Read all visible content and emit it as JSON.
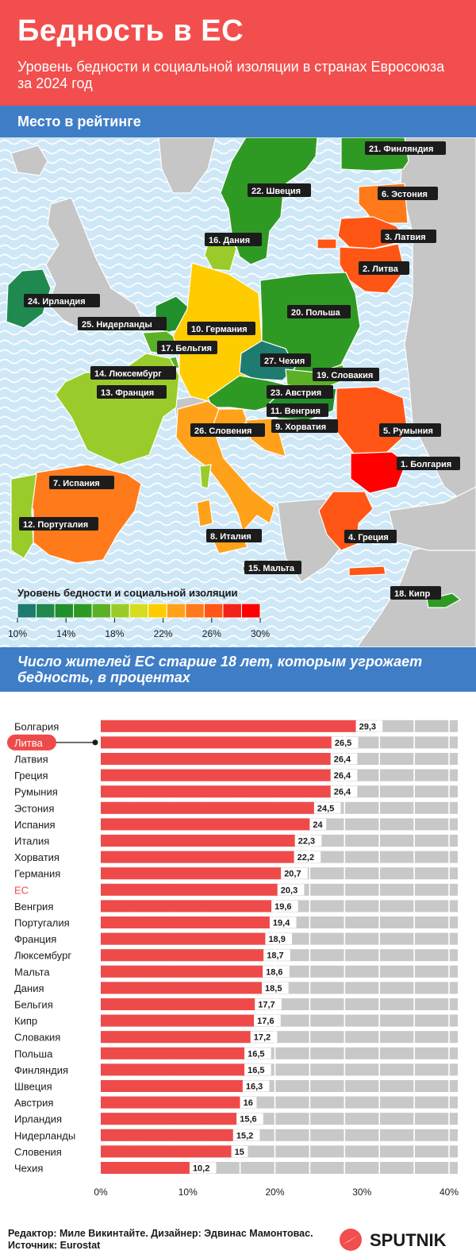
{
  "header": {
    "title": "Бедность в ЕС",
    "subtitle": "Уровень бедности и социальной изоляции в странах Евросоюза за 2024 год"
  },
  "map": {
    "section_title": "Место в рейтинге",
    "legend_title": "Уровень бедности и социальной изоляции",
    "legend_ticks": [
      "10%",
      "14%",
      "18%",
      "22%",
      "26%",
      "30%"
    ],
    "legend_colors": [
      "#1e7b6f",
      "#20894f",
      "#228f2d",
      "#2f9a23",
      "#5cb025",
      "#99cc2a",
      "#d6dd1e",
      "#ffcc00",
      "#ffa21a",
      "#ff7a1a",
      "#ff5515",
      "#f2221a",
      "#ff0000"
    ],
    "neighbor_color": "#c6c6c6",
    "sea_color": "#cfe8f7",
    "labels": {
      "bulgaria": "1. Болгария",
      "lithuania": "2. Литва",
      "latvia": "3. Латвия",
      "greece": "4. Греция",
      "romania": "5. Румыния",
      "estonia": "6. Эстония",
      "spain": "7. Испания",
      "italy": "8. Италия",
      "croatia": "9. Хорватия",
      "germany": "10. Германия",
      "hungary": "11. Венгрия",
      "portugal": "12. Португалия",
      "france": "13. Франция",
      "luxembourg": "14. Люксембург",
      "malta": "15. Мальта",
      "denmark": "16. Дания",
      "belgium": "17. Бельгия",
      "cyprus": "18. Кипр",
      "slovakia": "19. Словакия",
      "poland": "20. Польша",
      "finland": "21. Финляндия",
      "sweden": "22. Швеция",
      "austria": "23. Австрия",
      "ireland": "24. Ирландия",
      "netherlands": "25. Нидерланды",
      "slovenia": "26. Словения",
      "czechia": "27. Чехия"
    }
  },
  "bar_section": {
    "title": "Число жителей ЕС старше 18 лет, которым угрожает бедность, в процентах"
  },
  "chart_data": {
    "type": "bar",
    "orientation": "horizontal",
    "categories": [
      "Болгария",
      "Литва",
      "Латвия",
      "Греция",
      "Румыния",
      "Эстония",
      "Испания",
      "Италия",
      "Хорватия",
      "Германия",
      "ЕС",
      "Венгрия",
      "Португалия",
      "Франция",
      "Люксембург",
      "Мальта",
      "Дания",
      "Бельгия",
      "Кипр",
      "Словакия",
      "Польша",
      "Финляндия",
      "Швеция",
      "Австрия",
      "Ирландия",
      "Нидерланды",
      "Словения",
      "Чехия"
    ],
    "values": [
      29.3,
      26.5,
      26.4,
      26.4,
      26.4,
      24.5,
      24,
      22.3,
      22.2,
      20.7,
      20.3,
      19.6,
      19.4,
      18.9,
      18.7,
      18.6,
      18.5,
      17.7,
      17.6,
      17.2,
      16.5,
      16.5,
      16.3,
      16,
      15.6,
      15.2,
      15,
      10.2
    ],
    "value_labels": [
      "29,3",
      "26,5",
      "26,4",
      "26,4",
      "26,4",
      "24,5",
      "24",
      "22,3",
      "22,2",
      "20,7",
      "20,3",
      "19,6",
      "19,4",
      "18,9",
      "18,7",
      "18,6",
      "18,5",
      "17,7",
      "17,6",
      "17,2",
      "16,5",
      "16,5",
      "16,3",
      "16",
      "15,6",
      "15,2",
      "15",
      "10,2"
    ],
    "highlight": "Литва",
    "emphasis": "ЕС",
    "xlim": [
      0,
      41
    ],
    "xticks": [
      0,
      10,
      20,
      30,
      40
    ],
    "xtick_labels": [
      "0%",
      "10%",
      "20%",
      "30%",
      "40%"
    ],
    "bar_color": "#ef4a4a",
    "track_color": "#c8c8c8",
    "highlight_color": "#ef4a4a"
  },
  "footer": {
    "credits": "Редактор: Миле Викинтайте.  Дизайнер: Эдвинас Мамонтовас.",
    "source": "Источник: Eurostat",
    "logo_text": "SPUTNIK"
  }
}
